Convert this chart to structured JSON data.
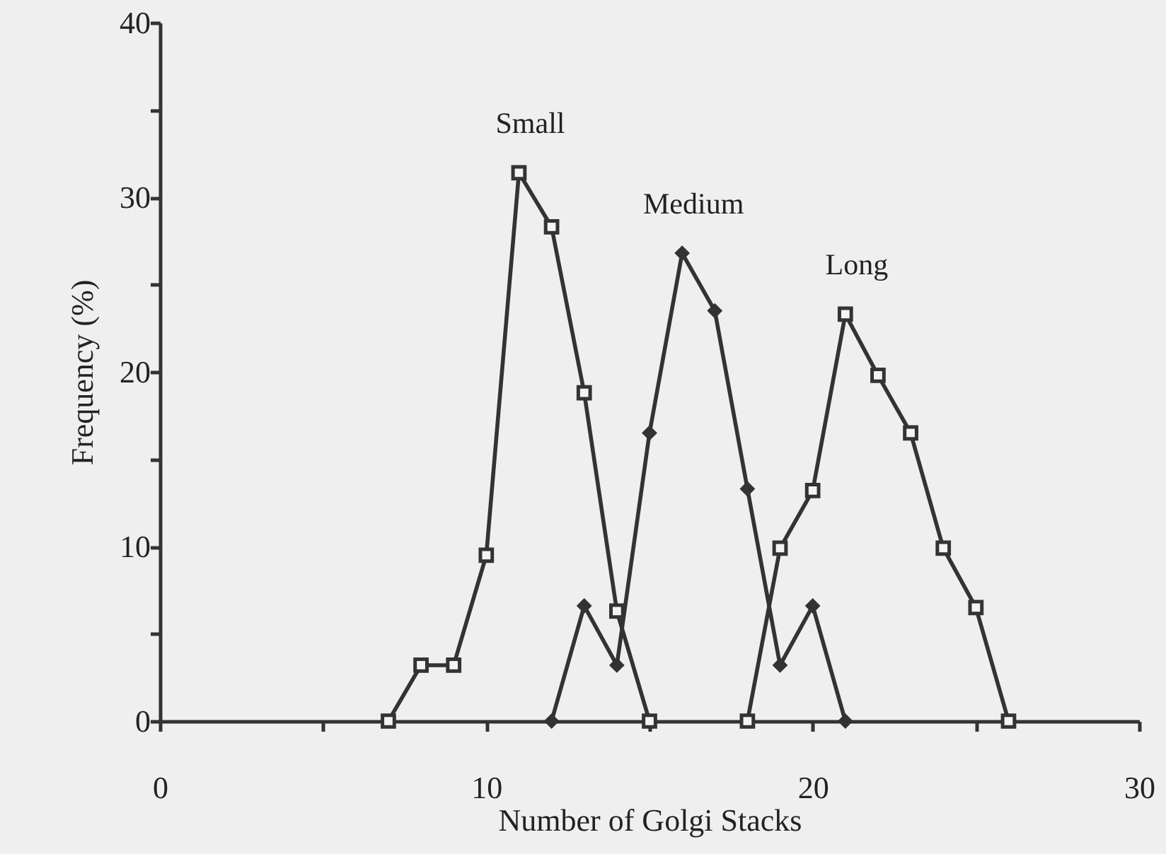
{
  "chart_data": {
    "type": "line",
    "xlabel": "Number of Golgi Stacks",
    "ylabel": "Frequency (%)",
    "xlim": [
      0,
      30
    ],
    "ylim": [
      0,
      40
    ],
    "xticks": [
      0,
      {
        "value": 5,
        "label": null
      },
      10,
      {
        "value": 15,
        "label": null
      },
      20,
      {
        "value": 25,
        "label": null
      },
      30
    ],
    "yticks": [
      0,
      {
        "value": 5,
        "label": null
      },
      10,
      {
        "value": 15,
        "label": null
      },
      20,
      {
        "value": 25,
        "label": null
      },
      30,
      {
        "value": 35,
        "label": null
      },
      40
    ],
    "grid": false,
    "line_style": "solid",
    "series": [
      {
        "name": "Small",
        "color": "#333333",
        "marker": "square",
        "x": [
          7,
          8,
          9,
          10,
          11,
          12,
          13,
          14,
          15
        ],
        "values": [
          0,
          3.2,
          3.2,
          9.5,
          31.4,
          28.3,
          18.8,
          6.3,
          0
        ]
      },
      {
        "name": "Medium",
        "color": "#333333",
        "marker": "diamond",
        "x": [
          12,
          13,
          14,
          15,
          16,
          17,
          18,
          19,
          20,
          21
        ],
        "values": [
          0,
          6.6,
          3.2,
          16.5,
          26.8,
          23.5,
          13.3,
          3.2,
          6.6,
          0
        ]
      },
      {
        "name": "Long",
        "color": "#333333",
        "marker": "square",
        "x": [
          18,
          19,
          20,
          21,
          22,
          23,
          24,
          25,
          26
        ],
        "values": [
          0,
          9.9,
          13.2,
          23.3,
          19.8,
          16.5,
          9.9,
          6.5,
          0
        ]
      }
    ]
  }
}
